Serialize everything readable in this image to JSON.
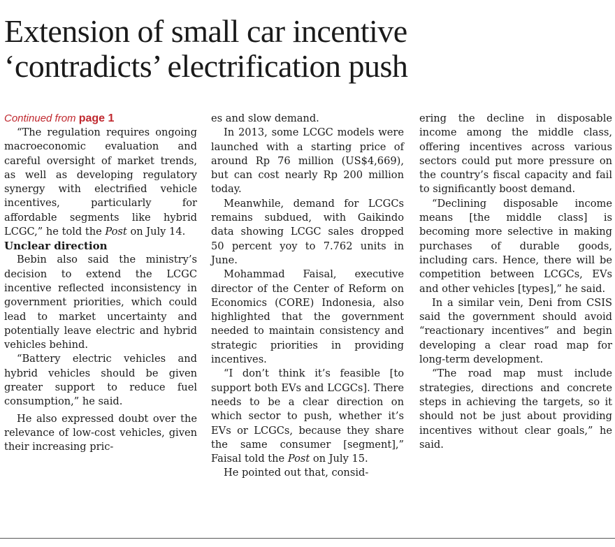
{
  "headline": {
    "line1": "Extension of small car incentive",
    "line2": "‘contradicts’ electrification push"
  },
  "continued": {
    "prefix": "Continued from",
    "page": "page 1"
  },
  "col1": {
    "p1": "“The regulation requires ongoing macroeconomic evaluation and careful oversight of market trends, as well as developing regulatory synergy with electrified vehicle incentives, particularly for affordable segments like hybrid LCGC,” he told the",
    "p1_italic": "Post",
    "p1_end": "on July 14.",
    "subhead": "Unclear direction",
    "p2": "Bebin also said the ministry’s decision to extend the LCGC incentive reflected inconsistency in government priorities, which could lead to market uncertainty and potentially leave electric and hybrid vehicles behind.",
    "p3": "“Battery electric vehicles and hybrid vehicles should be given greater support to reduce fuel consumption,” he said.",
    "p4": "He also expressed doubt over the relevance of low-cost vehicles, given their increasing pric-"
  },
  "col2": {
    "p1": "es and slow demand.",
    "p2": "In 2013, some LCGC models were launched with a starting price of around Rp 76 million (US$4,669), but can cost nearly Rp 200 million today.",
    "p3": "Meanwhile, demand for LCGCs remains subdued, with Gaikindo data showing LCGC sales dropped 50 percent yoy to 7.762 units in June.",
    "p4": "Mohammad Faisal, executive director of the Center of Reform on Economics (CORE) Indonesia, also highlighted that the government needed to maintain consistency and strategic priorities in providing incentives.",
    "p5": "“I don’t think it’s feasible [to support both EVs and LCGCs]. There needs to be a clear direction on which sector to push, whether it’s EVs or LCGCs, because they share the same consumer [segment],” Faisal told the",
    "p5_italic": "Post",
    "p5_end": "on July 15.",
    "p6": "He pointed out that, consid-"
  },
  "col3": {
    "p1": "ering the decline in disposable income among the middle class, offering incentives across various sectors could put more pressure on the country’s fiscal capacity and fail to significantly boost demand.",
    "p2": "“Declining disposable income means [the middle class] is becoming more selective in making purchases of durable goods, including cars. Hence, there will be competition between LCGCs, EVs and other vehicles [types],” he said.",
    "p3": "In a similar vein, Deni from CSIS said the government should avoid “reactionary incentives” and begin developing a clear road map for long-term development.",
    "p4": "“The road map must include strategies, directions and concrete steps in achieving the targets, so it should not be just about providing incentives without clear goals,” he said."
  }
}
